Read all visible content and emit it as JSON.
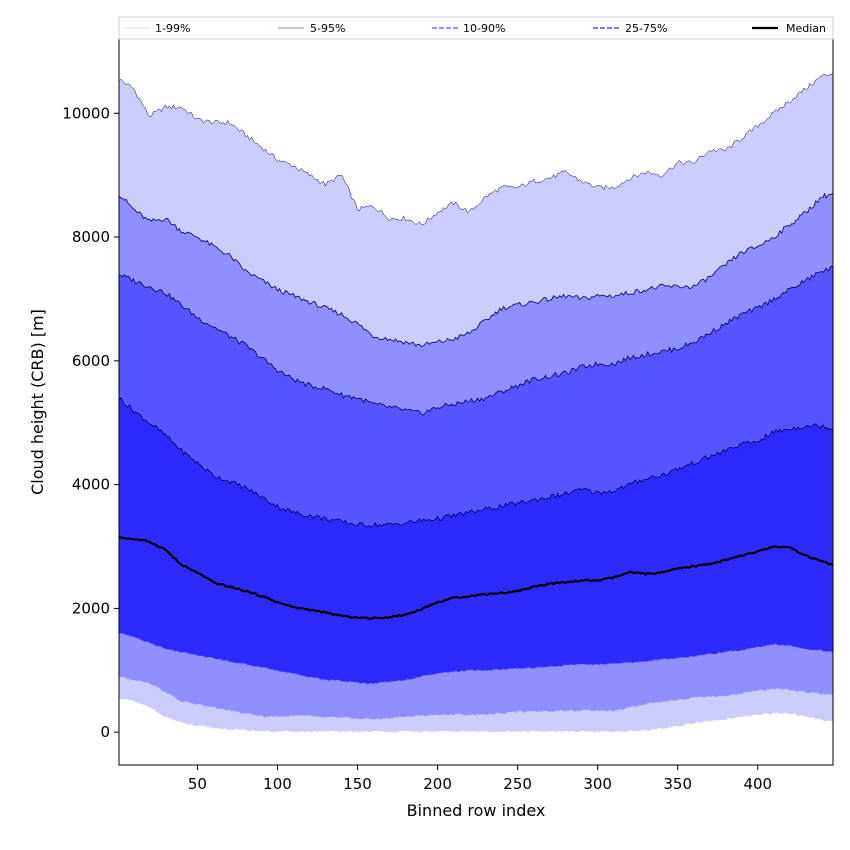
{
  "chart_data": {
    "type": "area",
    "xlabel": "Binned row index",
    "ylabel": "Cloud height (CRB) [m]",
    "xlim": [
      1,
      447
    ],
    "ylim": [
      -530,
      11200
    ],
    "xticks": [
      50,
      100,
      150,
      200,
      250,
      300,
      350,
      400
    ],
    "yticks": [
      0,
      2000,
      4000,
      6000,
      8000,
      10000
    ],
    "legend_placement": "top (above plot, single row)",
    "grid": false,
    "colors": {
      "band_1_99": "#ccccff",
      "band_5_95": "#8f8fff",
      "band_10_90": "#5555ff",
      "band_25_75": "#2b2bff",
      "median": "#000000",
      "edge": "#000066"
    },
    "x": [
      1,
      10,
      20,
      30,
      40,
      50,
      60,
      70,
      80,
      90,
      100,
      110,
      120,
      130,
      140,
      150,
      160,
      170,
      180,
      190,
      200,
      210,
      220,
      230,
      240,
      250,
      260,
      270,
      280,
      290,
      300,
      310,
      320,
      330,
      340,
      350,
      360,
      370,
      380,
      390,
      400,
      410,
      420,
      430,
      440,
      447
    ],
    "bands": [
      {
        "name": "1-99%",
        "lower": [
          550,
          500,
          400,
          250,
          150,
          100,
          70,
          50,
          30,
          20,
          10,
          10,
          10,
          10,
          10,
          10,
          10,
          10,
          10,
          10,
          10,
          10,
          10,
          10,
          10,
          10,
          10,
          10,
          10,
          10,
          10,
          10,
          10,
          30,
          60,
          100,
          140,
          180,
          210,
          240,
          280,
          310,
          300,
          250,
          200,
          180
        ],
        "upper": [
          10550,
          10400,
          9950,
          10100,
          10100,
          9900,
          9850,
          9850,
          9650,
          9450,
          9250,
          9150,
          9000,
          8850,
          9000,
          8450,
          8500,
          8300,
          8300,
          8200,
          8400,
          8550,
          8400,
          8650,
          8800,
          8800,
          8900,
          8950,
          9050,
          8900,
          8800,
          8800,
          8950,
          9050,
          9000,
          9200,
          9200,
          9400,
          9400,
          9600,
          9800,
          10000,
          10200,
          10400,
          10600,
          10650
        ]
      },
      {
        "name": "5-95%",
        "lower": [
          900,
          850,
          800,
          650,
          500,
          450,
          400,
          350,
          300,
          260,
          250,
          270,
          260,
          250,
          240,
          220,
          210,
          230,
          250,
          270,
          280,
          290,
          280,
          290,
          310,
          330,
          340,
          340,
          350,
          350,
          350,
          340,
          400,
          450,
          500,
          520,
          560,
          580,
          590,
          630,
          670,
          700,
          680,
          650,
          620,
          600
        ]
      },
      {
        "name": "10-90%",
        "lower": [
          1600,
          1550,
          1450,
          1350,
          1300,
          1250,
          1200,
          1150,
          1100,
          1050,
          1000,
          950,
          900,
          850,
          830,
          800,
          790,
          820,
          850,
          900,
          950,
          980,
          1000,
          1000,
          1020,
          1030,
          1040,
          1060,
          1080,
          1100,
          1100,
          1110,
          1130,
          1150,
          1180,
          1200,
          1230,
          1260,
          1300,
          1330,
          1380,
          1420,
          1400,
          1350,
          1320,
          1300
        ],
        "upper": [
          8700,
          8450,
          8250,
          8300,
          8100,
          8000,
          7850,
          7700,
          7450,
          7300,
          7150,
          7050,
          6950,
          6850,
          6750,
          6600,
          6400,
          6350,
          6300,
          6250,
          6300,
          6350,
          6450,
          6650,
          6850,
          6900,
          6950,
          7000,
          7050,
          7000,
          7050,
          7050,
          7100,
          7150,
          7200,
          7200,
          7200,
          7350,
          7550,
          7750,
          7850,
          8000,
          8200,
          8400,
          8650,
          8700
        ]
      },
      {
        "name": "25-75%",
        "lower": [
          1600,
          1550,
          1450,
          1350,
          1300,
          1250,
          1200,
          1150,
          1100,
          1050,
          1000,
          950,
          900,
          850,
          830,
          800,
          790,
          820,
          850,
          900,
          950,
          980,
          1000,
          1000,
          1020,
          1030,
          1040,
          1060,
          1080,
          1100,
          1100,
          1110,
          1130,
          1150,
          1180,
          1200,
          1230,
          1260,
          1300,
          1330,
          1380,
          1420,
          1400,
          1350,
          1320,
          1300
        ],
        "upper": [
          5400,
          5200,
          5000,
          4800,
          4550,
          4350,
          4150,
          4050,
          3950,
          3800,
          3650,
          3550,
          3500,
          3450,
          3400,
          3350,
          3350,
          3350,
          3380,
          3420,
          3450,
          3500,
          3550,
          3600,
          3650,
          3700,
          3750,
          3800,
          3850,
          3920,
          3870,
          3900,
          4000,
          4100,
          4150,
          4250,
          4350,
          4450,
          4550,
          4650,
          4700,
          4850,
          4900,
          4950,
          4950,
          4900
        ]
      }
    ],
    "band_10_90_upper_inner": [
      7400,
      7300,
      7200,
      7100,
      6900,
      6700,
      6550,
      6400,
      6250,
      6050,
      5850,
      5700,
      5600,
      5550,
      5450,
      5400,
      5300,
      5250,
      5200,
      5150,
      5250,
      5300,
      5350,
      5400,
      5500,
      5600,
      5700,
      5750,
      5800,
      5900,
      5950,
      5950,
      6050,
      6100,
      6150,
      6200,
      6300,
      6450,
      6600,
      6750,
      6850,
      7000,
      7150,
      7300,
      7450,
      7500
    ],
    "median": {
      "name": "Median",
      "values": [
        3150,
        3120,
        3080,
        2950,
        2700,
        2580,
        2420,
        2350,
        2280,
        2200,
        2100,
        2020,
        1980,
        1930,
        1880,
        1850,
        1840,
        1860,
        1900,
        1990,
        2100,
        2170,
        2200,
        2230,
        2250,
        2280,
        2350,
        2400,
        2420,
        2450,
        2450,
        2500,
        2580,
        2560,
        2580,
        2640,
        2680,
        2720,
        2780,
        2850,
        2920,
        3000,
        2980,
        2850,
        2760,
        2700
      ]
    },
    "legend": [
      {
        "label": "1-99%",
        "style": "thin-solid",
        "color": "#ccccff"
      },
      {
        "label": "5-95%",
        "style": "thin-solid",
        "color": "#8f8fff"
      },
      {
        "label": "10-90%",
        "style": "dashed",
        "color": "#5555ff"
      },
      {
        "label": "25-75%",
        "style": "dashed",
        "color": "#2b2bff"
      },
      {
        "label": "Median",
        "style": "solid-thick",
        "color": "#000000"
      }
    ]
  }
}
